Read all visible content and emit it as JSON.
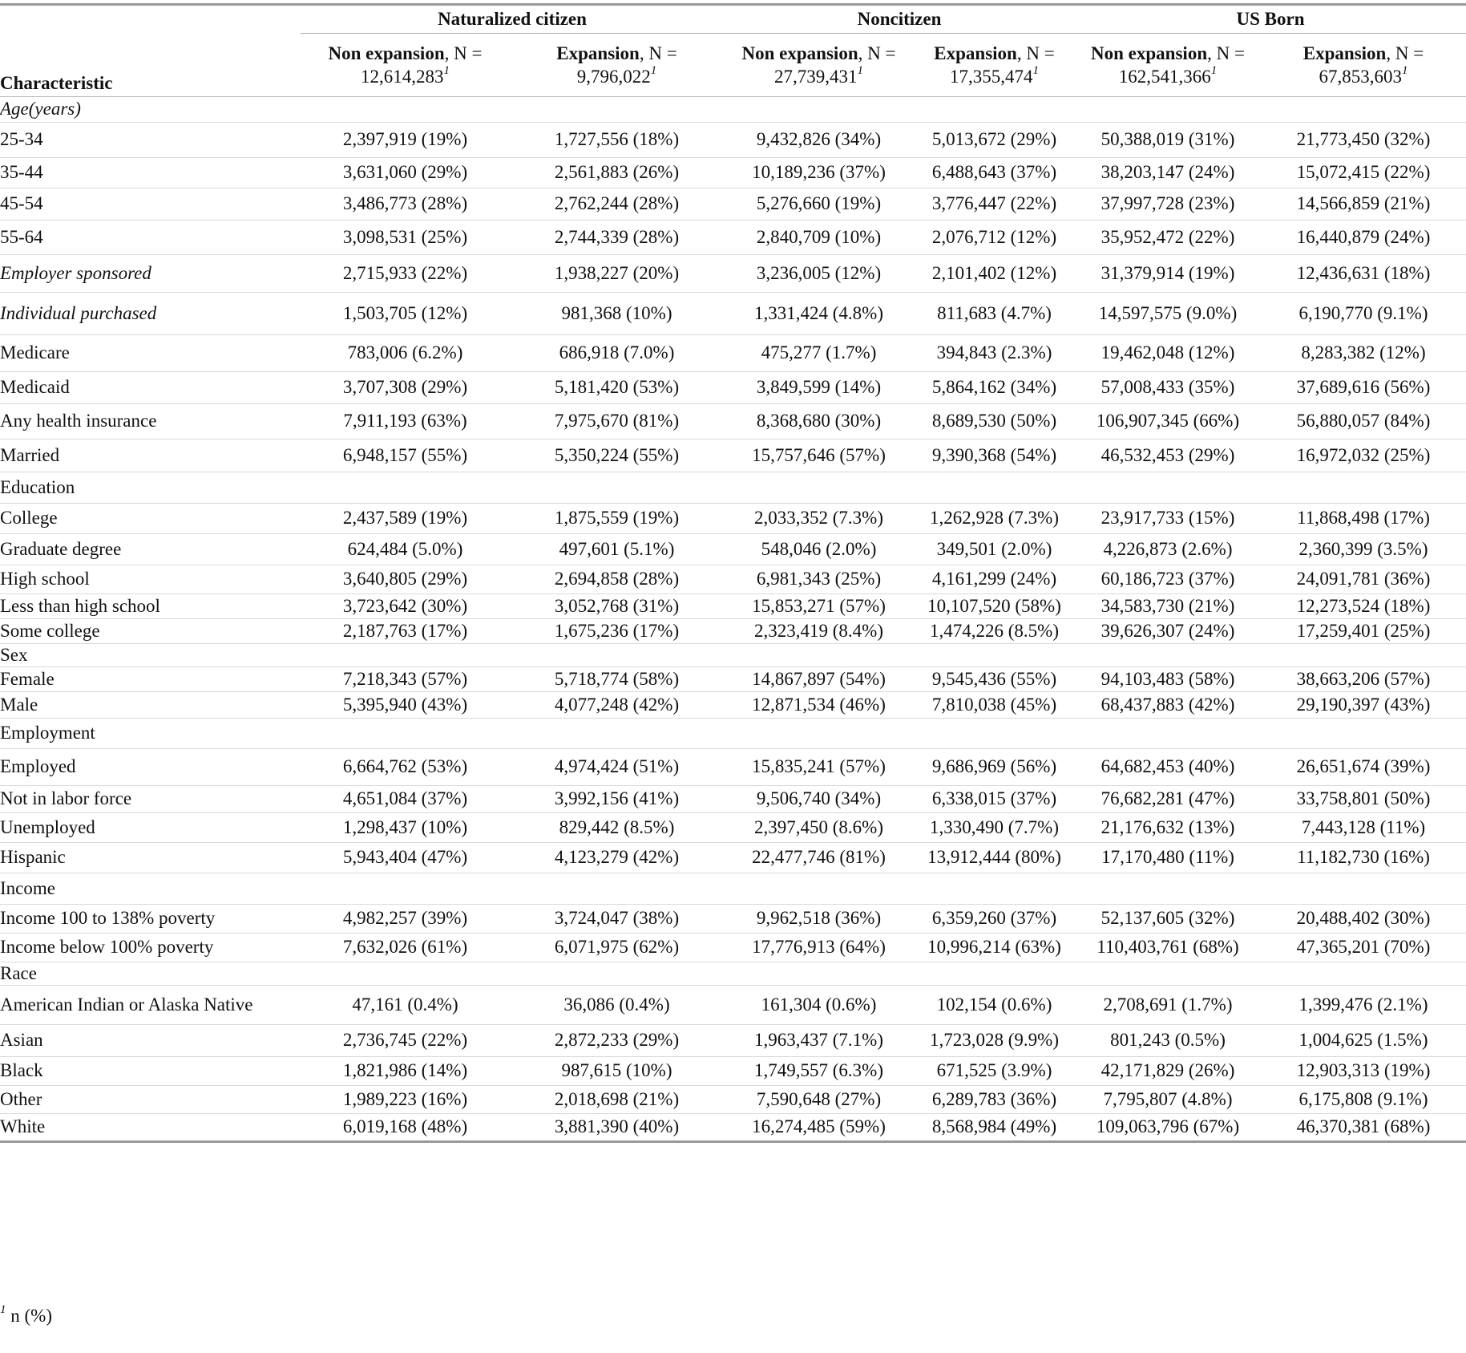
{
  "header": {
    "characteristic_label": "Characteristic",
    "groups": [
      "Naturalized citizen",
      "Noncitizen",
      "US Born"
    ],
    "columns": [
      {
        "label": "Non expansion",
        "n": ", N =",
        "value": "12,614,283",
        "sup": "1"
      },
      {
        "label": "Expansion",
        "n": ", N =",
        "value": "9,796,022",
        "sup": "1"
      },
      {
        "label": "Non expansion",
        "n": ", N =",
        "value": "27,739,431",
        "sup": "1"
      },
      {
        "label": "Expansion",
        "n": ", N =",
        "value": "17,355,474",
        "sup": "1"
      },
      {
        "label": "Non expansion",
        "n": ", N =",
        "value": "162,541,366",
        "sup": "1"
      },
      {
        "label": "Expansion",
        "n": ", N =",
        "value": "67,853,603",
        "sup": "1"
      }
    ]
  },
  "rows": [
    {
      "label": "Age(years)",
      "values": [
        "",
        "",
        "",
        "",
        "",
        ""
      ]
    },
    {
      "label": "25-34",
      "values": [
        "2,397,919 (19%)",
        "1,727,556 (18%)",
        "9,432,826 (34%)",
        "5,013,672 (29%)",
        "50,388,019 (31%)",
        "21,773,450 (32%)"
      ]
    },
    {
      "label": "35-44",
      "values": [
        "3,631,060 (29%)",
        "2,561,883 (26%)",
        "10,189,236 (37%)",
        "6,488,643 (37%)",
        "38,203,147 (24%)",
        "15,072,415 (22%)"
      ]
    },
    {
      "label": "45-54",
      "values": [
        "3,486,773 (28%)",
        "2,762,244 (28%)",
        "5,276,660 (19%)",
        "3,776,447 (22%)",
        "37,997,728 (23%)",
        "14,566,859 (21%)"
      ]
    },
    {
      "label": "55-64",
      "values": [
        "3,098,531 (25%)",
        "2,744,339 (28%)",
        "2,840,709 (10%)",
        "2,076,712 (12%)",
        "35,952,472 (22%)",
        "16,440,879 (24%)"
      ]
    },
    {
      "label": "Employer sponsored",
      "values": [
        "2,715,933 (22%)",
        "1,938,227 (20%)",
        "3,236,005 (12%)",
        "2,101,402 (12%)",
        "31,379,914 (19%)",
        "12,436,631 (18%)"
      ]
    },
    {
      "label": "Individual purchased",
      "values": [
        "1,503,705 (12%)",
        "981,368 (10%)",
        "1,331,424 (4.8%)",
        "811,683 (4.7%)",
        "14,597,575 (9.0%)",
        "6,190,770 (9.1%)"
      ]
    },
    {
      "label": "Medicare",
      "values": [
        "783,006 (6.2%)",
        "686,918 (7.0%)",
        "475,277 (1.7%)",
        "394,843 (2.3%)",
        "19,462,048 (12%)",
        "8,283,382 (12%)"
      ]
    },
    {
      "label": "Medicaid",
      "values": [
        "3,707,308 (29%)",
        "5,181,420 (53%)",
        "3,849,599 (14%)",
        "5,864,162 (34%)",
        "57,008,433 (35%)",
        "37,689,616 (56%)"
      ]
    },
    {
      "label": "Any health insurance",
      "values": [
        "7,911,193 (63%)",
        "7,975,670 (81%)",
        "8,368,680 (30%)",
        "8,689,530 (50%)",
        "106,907,345 (66%)",
        "56,880,057 (84%)"
      ]
    },
    {
      "label": "Married",
      "values": [
        "6,948,157 (55%)",
        "5,350,224 (55%)",
        "15,757,646 (57%)",
        "9,390,368 (54%)",
        "46,532,453 (29%)",
        "16,972,032 (25%)"
      ]
    },
    {
      "label": "Education",
      "values": [
        "",
        "",
        "",
        "",
        "",
        ""
      ]
    },
    {
      "label": "College",
      "values": [
        "2,437,589 (19%)",
        "1,875,559 (19%)",
        "2,033,352 (7.3%)",
        "1,262,928 (7.3%)",
        "23,917,733 (15%)",
        "11,868,498 (17%)"
      ]
    },
    {
      "label": "Graduate degree",
      "values": [
        "624,484 (5.0%)",
        "497,601 (5.1%)",
        "548,046 (2.0%)",
        "349,501 (2.0%)",
        "4,226,873 (2.6%)",
        "2,360,399 (3.5%)"
      ]
    },
    {
      "label": "High school",
      "values": [
        "3,640,805 (29%)",
        "2,694,858 (28%)",
        "6,981,343 (25%)",
        "4,161,299 (24%)",
        "60,186,723 (37%)",
        "24,091,781 (36%)"
      ]
    },
    {
      "label": "Less than high school",
      "values": [
        "3,723,642 (30%)",
        "3,052,768 (31%)",
        "15,853,271 (57%)",
        "10,107,520 (58%)",
        "34,583,730 (21%)",
        "12,273,524 (18%)"
      ]
    },
    {
      "label": "Some college",
      "values": [
        "2,187,763 (17%)",
        "1,675,236 (17%)",
        "2,323,419 (8.4%)",
        "1,474,226 (8.5%)",
        "39,626,307 (24%)",
        "17,259,401 (25%)"
      ]
    },
    {
      "label": "Sex",
      "values": [
        "",
        "",
        "",
        "",
        "",
        ""
      ]
    },
    {
      "label": "Female",
      "values": [
        "7,218,343 (57%)",
        "5,718,774 (58%)",
        "14,867,897 (54%)",
        "9,545,436 (55%)",
        "94,103,483 (58%)",
        "38,663,206 (57%)"
      ]
    },
    {
      "label": "Male",
      "values": [
        "5,395,940 (43%)",
        "4,077,248 (42%)",
        "12,871,534 (46%)",
        "7,810,038 (45%)",
        "68,437,883 (42%)",
        "29,190,397 (43%)"
      ]
    },
    {
      "label": "Employment",
      "values": [
        "",
        "",
        "",
        "",
        "",
        ""
      ]
    },
    {
      "label": "Employed",
      "values": [
        "6,664,762 (53%)",
        "4,974,424 (51%)",
        "15,835,241 (57%)",
        "9,686,969 (56%)",
        "64,682,453 (40%)",
        "26,651,674 (39%)"
      ]
    },
    {
      "label": "Not in labor force",
      "values": [
        "4,651,084 (37%)",
        "3,992,156 (41%)",
        "9,506,740 (34%)",
        "6,338,015 (37%)",
        "76,682,281 (47%)",
        "33,758,801 (50%)"
      ]
    },
    {
      "label": "Unemployed",
      "values": [
        "1,298,437 (10%)",
        "829,442 (8.5%)",
        "2,397,450 (8.6%)",
        "1,330,490 (7.7%)",
        "21,176,632 (13%)",
        "7,443,128 (11%)"
      ]
    },
    {
      "label": "Hispanic",
      "values": [
        "5,943,404 (47%)",
        "4,123,279 (42%)",
        "22,477,746 (81%)",
        "13,912,444 (80%)",
        "17,170,480 (11%)",
        "11,182,730 (16%)"
      ]
    },
    {
      "label": "Income",
      "values": [
        "",
        "",
        "",
        "",
        "",
        ""
      ]
    },
    {
      "label": "Income 100 to 138% poverty",
      "values": [
        "4,982,257 (39%)",
        "3,724,047 (38%)",
        "9,962,518 (36%)",
        "6,359,260 (37%)",
        "52,137,605 (32%)",
        "20,488,402 (30%)"
      ]
    },
    {
      "label": "Income below 100% poverty",
      "values": [
        "7,632,026 (61%)",
        "6,071,975 (62%)",
        "17,776,913 (64%)",
        "10,996,214 (63%)",
        "110,403,761 (68%)",
        "47,365,201 (70%)"
      ]
    },
    {
      "label": "Race",
      "values": [
        "",
        "",
        "",
        "",
        "",
        ""
      ]
    },
    {
      "label": "American Indian or Alaska Native",
      "values": [
        "47,161 (0.4%)",
        "36,086 (0.4%)",
        "161,304 (0.6%)",
        "102,154 (0.6%)",
        "2,708,691 (1.7%)",
        "1,399,476 (2.1%)"
      ]
    },
    {
      "label": "Asian",
      "values": [
        "2,736,745 (22%)",
        "2,872,233 (29%)",
        "1,963,437 (7.1%)",
        "1,723,028 (9.9%)",
        "801,243 (0.5%)",
        "1,004,625 (1.5%)"
      ]
    },
    {
      "label": "Black",
      "values": [
        "1,821,986 (14%)",
        "987,615 (10%)",
        "1,749,557 (6.3%)",
        "671,525 (3.9%)",
        "42,171,829 (26%)",
        "12,903,313 (19%)"
      ]
    },
    {
      "label": "Other",
      "values": [
        "1,989,223 (16%)",
        "2,018,698 (21%)",
        "7,590,648 (27%)",
        "6,289,783 (36%)",
        "7,795,807 (4.8%)",
        "6,175,808 (9.1%)"
      ]
    },
    {
      "label": "White",
      "values": [
        "6,019,168 (48%)",
        "3,881,390 (40%)",
        "16,274,485 (59%)",
        "8,568,984 (49%)",
        "109,063,796 (67%)",
        "46,370,381 (68%)"
      ]
    }
  ],
  "footnote": {
    "sup": "1",
    "text": " n (%)"
  }
}
